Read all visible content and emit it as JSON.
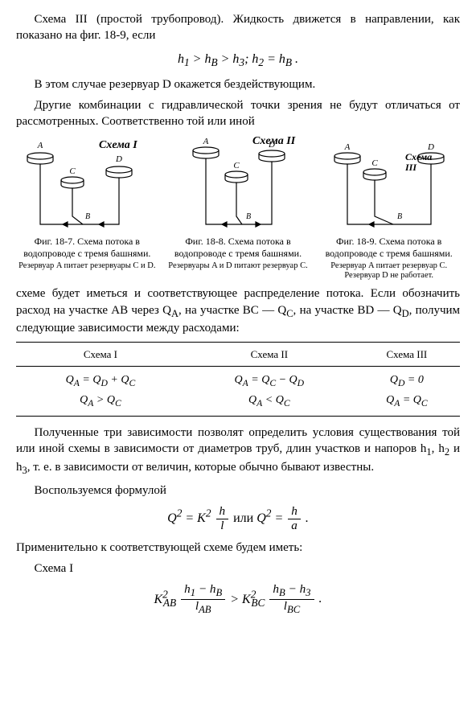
{
  "para1_a": "Схема III (простой трубопровод). Жидкость движется в направлении, как показано на фиг. 18-9, если",
  "formula1": "h<sub>1</sub> > h<sub>B</sub> > h<sub>3</sub>;  h<sub>2</sub> = h<sub>B</sub> .",
  "para2": "В этом случае резервуар D окажется бездействующим.",
  "para3": "Другие комбинации с гидравлической точки зрения не будут отличаться от рассмотренных. Соответственно той или иной",
  "fig1": {
    "label": "Схема I",
    "cap": "Фиг. 18-7. Схема потока в водопроводе с тремя башнями.",
    "cap2": "Резервуар A питает резервуары C и D."
  },
  "fig2": {
    "label": "Схема II",
    "cap": "Фиг. 18-8. Схема потока в водопроводе с тремя башнями.",
    "cap2": "Резервуары A и D питают резервуар C."
  },
  "fig3": {
    "label": "Схема III",
    "cap": "Фиг. 18-9. Схема потока в водопроводе с тремя башнями.",
    "cap2": "Резервуар A питает резервуар C. Резервуар D не работает."
  },
  "para4": "схеме будет иметься и соответствующее распределение потока. Если обозначить расход на участке AB через Q<sub>A</sub>, на участке BC — Q<sub>C</sub>, на участке BD — Q<sub>D</sub>, получим следующие зависимости между расходами:",
  "table": {
    "head": [
      "Схема I",
      "Схема II",
      "Схема III"
    ],
    "row": [
      "Q<sub>A</sub> = Q<sub>D</sub> + Q<sub>C</sub><br>Q<sub>A</sub> > Q<sub>C</sub>",
      "Q<sub>A</sub> = Q<sub>C</sub> − Q<sub>D</sub><br>Q<sub>A</sub> < Q<sub>C</sub>",
      "Q<sub>D</sub> = 0<br>Q<sub>A</sub> = Q<sub>C</sub>"
    ]
  },
  "para5": "Полученные три зависимости позволят определить условия существования той или иной схемы в зависимости от диаметров труб, длин участков и напоров h<sub>1</sub>, h<sub>2</sub> и h<sub>3</sub>, т. е. в зависимости от величин, которые обычно бывают известны.",
  "para6": "Воспользуемся формулой",
  "formula2_lhs": "Q<sup>2</sup> = K<sup>2</sup>",
  "formula2_mid": " или ",
  "formula2_rhs": "Q<sup>2</sup> = ",
  "frac_h_l": {
    "num": "h",
    "den": "l"
  },
  "frac_h_a": {
    "num": "h",
    "den": "a"
  },
  "para7": "Применительно к соответствующей схеме будем иметь:",
  "para8": "Схема I",
  "formula3_left": "K<sup>2</sup><sub style='margin-left:-6px'>AB</sub>",
  "frac_f3a": {
    "num": "h<sub>1</sub> − h<sub>B</sub>",
    "den": "l<sub>AB</sub>"
  },
  "formula3_mid": " > K<sup>2</sup><sub style='margin-left:-6px'>BC</sub>",
  "frac_f3b": {
    "num": "h<sub>B</sub> − h<sub>3</sub>",
    "den": "l<sub>BC</sub>"
  },
  "diagram": {
    "stroke": "#000",
    "fill": "#fff",
    "linewidth": 1.2
  }
}
